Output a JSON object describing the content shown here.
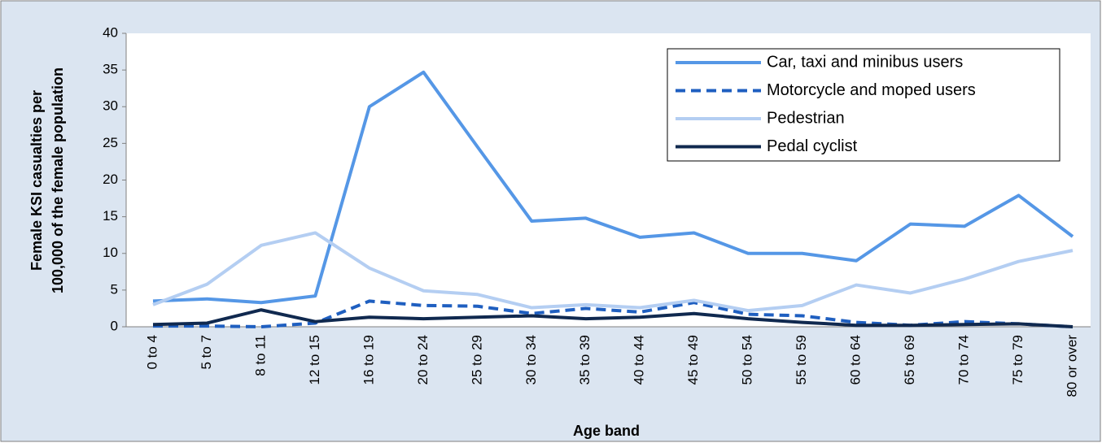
{
  "chart_data": {
    "type": "line",
    "ylabel": [
      "Female KSI casualties per",
      "100,000  of the female population"
    ],
    "xlabel": "Age band",
    "categories": [
      "0 to 4",
      "5 to 7",
      "8 to 11",
      "12 to 15",
      "16 to 19",
      "20 to 24",
      "25 to 29",
      "30 to 34",
      "35 to 39",
      "40 to 44",
      "45 to 49",
      "50 to 54",
      "55 to 59",
      "60 to 64",
      "65 to 69",
      "70 to 74",
      "75 to 79",
      "80 or over"
    ],
    "series": [
      {
        "name": "Car, taxi and minibus users",
        "color": "#5597e6",
        "line_style": "solid",
        "values": [
          3.5,
          3.8,
          3.3,
          4.2,
          30,
          34.7,
          24.5,
          14.4,
          14.8,
          12.2,
          12.8,
          10,
          10,
          9,
          14,
          13.7,
          17.9,
          12.3
        ]
      },
      {
        "name": "Motorcycle and moped users",
        "color": "#1f5fc0",
        "line_style": "dashed",
        "values": [
          0.1,
          0.1,
          0,
          0.5,
          3.5,
          2.9,
          2.8,
          1.8,
          2.5,
          2,
          3.3,
          1.7,
          1.5,
          0.6,
          0.2,
          0.7,
          0.4,
          0
        ]
      },
      {
        "name": "Pedestrian",
        "color": "#b4cef2",
        "line_style": "solid",
        "values": [
          3,
          5.8,
          11.1,
          12.8,
          8,
          4.9,
          4.4,
          2.6,
          3,
          2.6,
          3.6,
          2.2,
          2.9,
          5.7,
          4.6,
          6.5,
          8.9,
          10.4
        ]
      },
      {
        "name": "Pedal cyclist",
        "color": "#10294f",
        "line_style": "solid",
        "values": [
          0.3,
          0.5,
          2.3,
          0.7,
          1.3,
          1.1,
          1.3,
          1.5,
          1.1,
          1.3,
          1.8,
          1.1,
          0.6,
          0.2,
          0.2,
          0.3,
          0.4,
          0
        ]
      }
    ],
    "ylim": [
      0,
      40
    ],
    "yticks": [
      0,
      5,
      10,
      15,
      20,
      25,
      30,
      35,
      40
    ],
    "grid": false,
    "legend": "top-right"
  }
}
